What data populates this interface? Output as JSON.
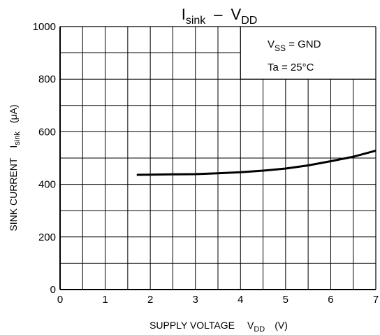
{
  "chart_data": {
    "type": "line",
    "title": {
      "main": "I",
      "sub1": "sink",
      "dash": "–",
      "v": "V",
      "sub2": "DD"
    },
    "xlabel": {
      "main": "SUPPLY VOLTAGE",
      "v": "V",
      "sub": "DD",
      "unit": "(V)"
    },
    "ylabel": {
      "main": "SINK CURRENT",
      "i": "I",
      "sub": "sink",
      "unit": "(μA)"
    },
    "xlim": [
      0,
      7
    ],
    "ylim": [
      0,
      1000
    ],
    "x_major_ticks": [
      0,
      1,
      2,
      3,
      4,
      5,
      6,
      7
    ],
    "x_minor_ticks": [
      0.5,
      1.5,
      2.5,
      3.5,
      4.5,
      5.5,
      6.5
    ],
    "x_tick_labels": [
      "0",
      "1",
      "2",
      "3",
      "4",
      "5",
      "6",
      "7"
    ],
    "y_major_ticks": [
      0,
      200,
      400,
      600,
      800,
      1000
    ],
    "y_minor_ticks": [
      100,
      300,
      500,
      700,
      900
    ],
    "y_tick_labels": [
      "0",
      "200",
      "400",
      "600",
      "800",
      "1000"
    ],
    "grid": true,
    "annotations": {
      "vss": {
        "v": "V",
        "sub": "SS",
        "rest": " = GND"
      },
      "ta": "Ta = 25°C"
    },
    "series": [
      {
        "color": "#000000",
        "x": [
          1.7,
          2.0,
          2.5,
          3.0,
          3.5,
          4.0,
          4.5,
          5.0,
          5.5,
          6.0,
          6.5,
          7.0
        ],
        "y": [
          436,
          437,
          438,
          439,
          442,
          446,
          452,
          460,
          472,
          488,
          505,
          528
        ]
      }
    ]
  }
}
